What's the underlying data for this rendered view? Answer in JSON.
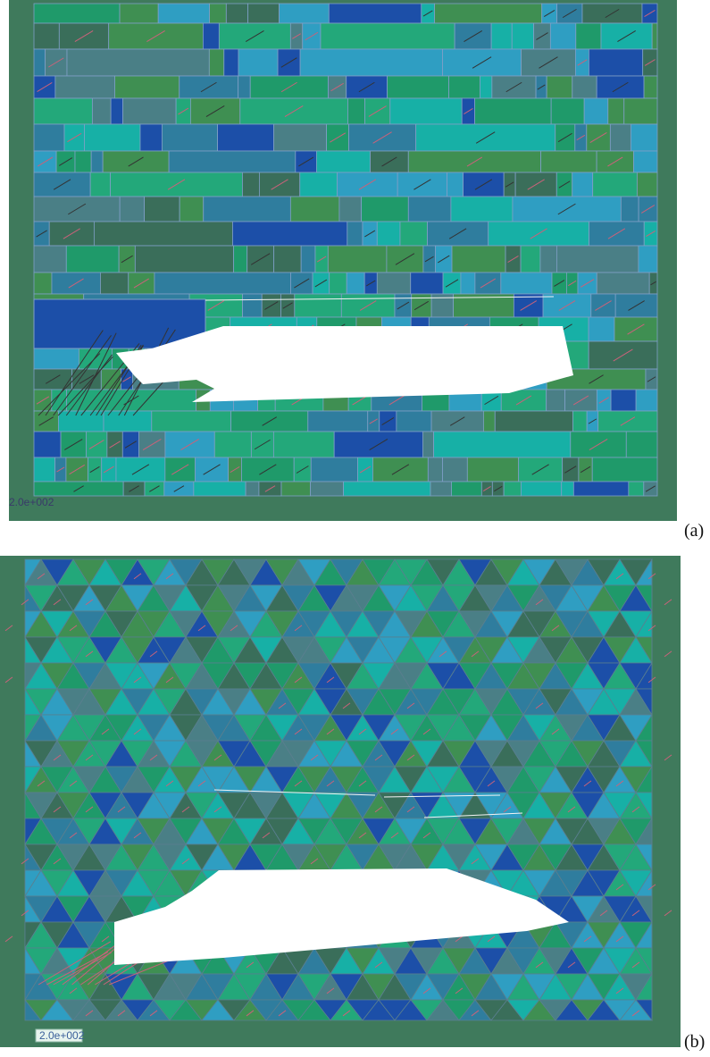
{
  "figure": {
    "panels": [
      {
        "id": "a",
        "label": "(a)",
        "mesh": "rectangular blocks",
        "scale_readout": "2.0e+002"
      },
      {
        "id": "b",
        "label": "(b)",
        "mesh": "triangular blocks",
        "scale_readout": "2.0e+002"
      }
    ],
    "colors": {
      "frame": "#3f7a5c",
      "block_palette": [
        "#2f7d9e",
        "#1f9a6a",
        "#17b0a6",
        "#1c4fa8",
        "#3a6e5a",
        "#2f9ec2",
        "#3f8f52",
        "#23a87a",
        "#4a7f86"
      ],
      "block_border": "#7f9fc6",
      "cavity": "#ffffff",
      "crack": "#c9627a"
    }
  }
}
